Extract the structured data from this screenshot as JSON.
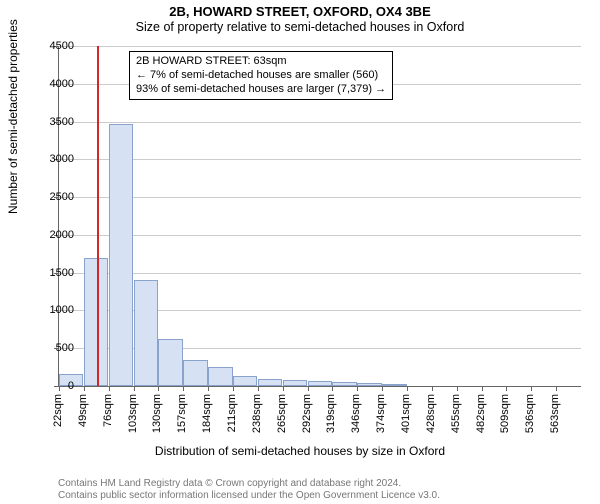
{
  "title": "2B, HOWARD STREET, OXFORD, OX4 3BE",
  "subtitle": "Size of property relative to semi-detached houses in Oxford",
  "ylabel": "Number of semi-detached properties",
  "xlabel": "Distribution of semi-detached houses by size in Oxford",
  "chart": {
    "type": "histogram",
    "ylim": [
      0,
      4500
    ],
    "ytick_step": 500,
    "bar_color": "#d6e1f3",
    "bar_border_color": "#8aa3cd",
    "background_color": "#ffffff",
    "grid_color": "#cccccc",
    "ref_line_color": "#d62728",
    "ref_line_x": 63,
    "x_start": 22,
    "x_step": 27,
    "x_ticks": [
      "22sqm",
      "49sqm",
      "76sqm",
      "103sqm",
      "130sqm",
      "157sqm",
      "184sqm",
      "211sqm",
      "238sqm",
      "265sqm",
      "292sqm",
      "319sqm",
      "346sqm",
      "374sqm",
      "401sqm",
      "428sqm",
      "455sqm",
      "482sqm",
      "509sqm",
      "536sqm",
      "563sqm"
    ],
    "values": [
      160,
      1700,
      3470,
      1400,
      620,
      340,
      250,
      130,
      90,
      80,
      60,
      50,
      40,
      30,
      0,
      0,
      0,
      0,
      0,
      0,
      0
    ]
  },
  "annotation": {
    "line1": "2B HOWARD STREET: 63sqm",
    "line2": "← 7% of semi-detached houses are smaller (560)",
    "line3": "93% of semi-detached houses are larger (7,379) →"
  },
  "copyright": {
    "line1": "Contains HM Land Registry data © Crown copyright and database right 2024.",
    "line2": "Contains public sector information licensed under the Open Government Licence v3.0."
  }
}
